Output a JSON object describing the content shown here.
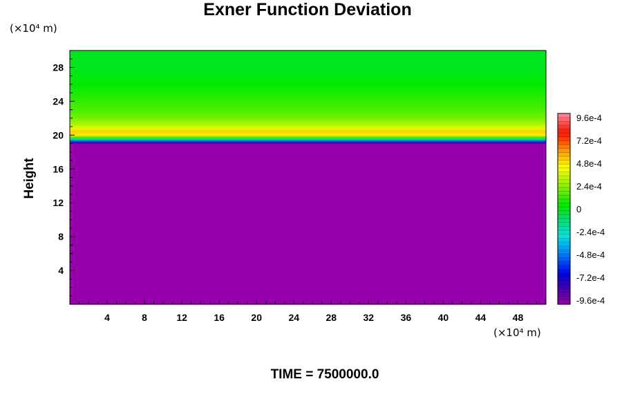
{
  "chart_data": {
    "type": "heatmap",
    "title": "Exner Function Deviation",
    "ylabel": "Height",
    "x_unit": "(×10⁴ m)",
    "y_unit": "(×10⁴ m)",
    "xlim": [
      0,
      51
    ],
    "ylim": [
      0,
      30
    ],
    "xticks": [
      4,
      8,
      12,
      16,
      20,
      24,
      28,
      32,
      36,
      40,
      44,
      48
    ],
    "yticks": [
      4,
      8,
      12,
      16,
      20,
      24,
      28
    ],
    "vertical_profile": [
      {
        "height": 0,
        "value": -0.00096
      },
      {
        "height": 18.9,
        "value": -0.00096
      },
      {
        "height": 19.1,
        "value": -0.0008
      },
      {
        "height": 19.3,
        "value": -0.0005
      },
      {
        "height": 19.5,
        "value": -0.0002
      },
      {
        "height": 19.7,
        "value": 0.0001
      },
      {
        "height": 20.0,
        "value": 0.00045
      },
      {
        "height": 20.4,
        "value": 0.0005
      },
      {
        "height": 20.8,
        "value": 0.00038
      },
      {
        "height": 21.3,
        "value": 0.00028
      },
      {
        "height": 22.0,
        "value": 0.0002
      },
      {
        "height": 23.0,
        "value": 0.00014
      },
      {
        "height": 24.5,
        "value": 9e-05
      },
      {
        "height": 26.0,
        "value": 4e-05
      },
      {
        "height": 28.0,
        "value": 0.0
      },
      {
        "height": 30.0,
        "value": 0.0
      }
    ],
    "colorbar": {
      "min": -0.00096,
      "max": 0.00096,
      "levels": 49,
      "labels": [
        "9.6e-4",
        "7.2e-4",
        "4.8e-4",
        "2.4e-4",
        "0",
        "-2.4e-4",
        "-4.8e-4",
        "-7.2e-4",
        "-9.6e-4"
      ]
    },
    "annotation": "TIME = 7500000.0"
  }
}
